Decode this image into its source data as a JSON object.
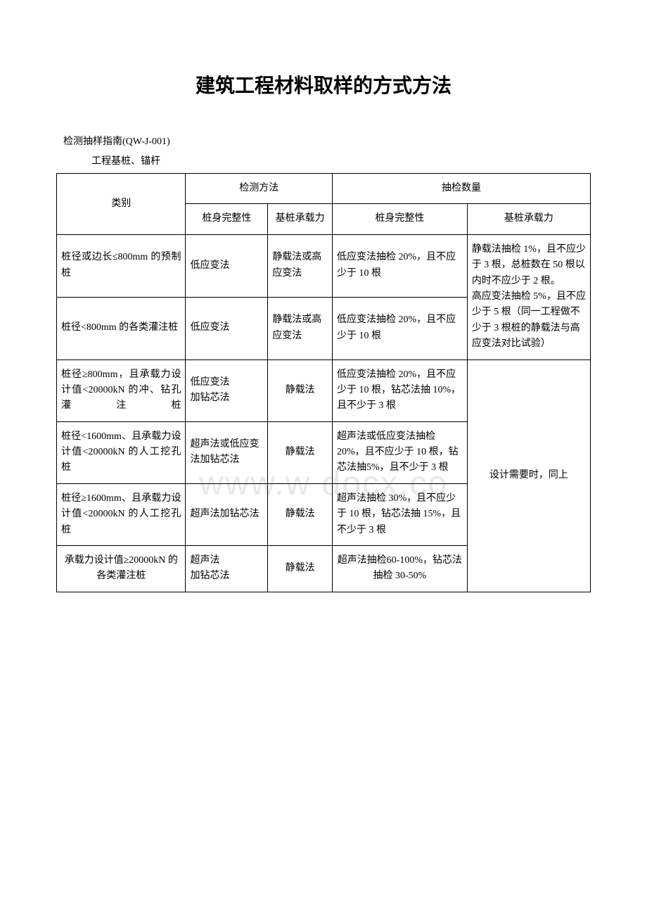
{
  "document": {
    "title": "建筑工程材料取样的方式方法",
    "subtitle": "检测抽样指南(QW-J-001)",
    "section_heading": "工程基桩、锚杆",
    "watermark": "www.w  docx.co"
  },
  "table": {
    "headers": {
      "category": "类别",
      "method_group": "检测方法",
      "qty_group": "抽检数量",
      "method1": "桩身完整性",
      "method2": "基桩承载力",
      "qty1": "桩身完整性",
      "qty2": "基桩承载力"
    },
    "rows": [
      {
        "category": "桩径或边长≤800mm 的预制桩",
        "method1": "低应变法",
        "method2": "静载法或高应变法",
        "qty1": "低应变法抽检 20%，且不应少于 10 根",
        "qty2_merged": "静载法抽检 1%，且不应少于 3 根，总桩数在 50 根以内时不应少于 2 根。\n高应变法抽检 5%，且不应少于 5 根（同一工程做不少于 3 根桩的静载法与高应变法对比试验）"
      },
      {
        "category": "桩径<800mm 的各类灌注桩",
        "method1": "低应变法",
        "method2": "静载法或高应变法",
        "qty1": "低应变法抽检 20%，且不应少于 10 根"
      },
      {
        "category": "桩径≥800mm，且承载力设计值<20000kN 的冲、钻孔灌注桩",
        "method1": "低应变法\n加钻芯法",
        "method2": "静载法",
        "qty1": "低应变法抽检 20%，且不应少于 10 根，钻芯法抽 10%，且不少于 3 根",
        "qty2_merged": "设计需要时，同上"
      },
      {
        "category": "桩径<1600mm、且承载力设计值<20000kN 的人工挖孔桩",
        "method1": "超声法或低应变法加钻芯法",
        "method2": "静载法",
        "qty1": "超声法或低应变法抽检 20%，且不应少于 10 根，钻芯法抽5%，且不少于 3 根"
      },
      {
        "category": "桩径≥1600mm、且承载力设计值<20000kN 的人工挖孔桩",
        "method1": "超声法加钻芯法",
        "method2": "静载法",
        "qty1": "超声法抽检 30%，且不应少于 10 根，钻芯法抽 15%，且不少于 3 根"
      },
      {
        "category": "承载力设计值≥20000kN 的各类灌注桩",
        "method1": "超声法\n加钻芯法",
        "method2": "静载法",
        "qty1": "超声法抽检60-100%，钻芯法抽检 30-50%"
      }
    ]
  },
  "styling": {
    "background_color": "#ffffff",
    "text_color": "#000000",
    "border_color": "#000000",
    "watermark_color": "#e8e8e8",
    "title_fontsize": 28,
    "body_fontsize": 14,
    "border_width": 1.5
  }
}
